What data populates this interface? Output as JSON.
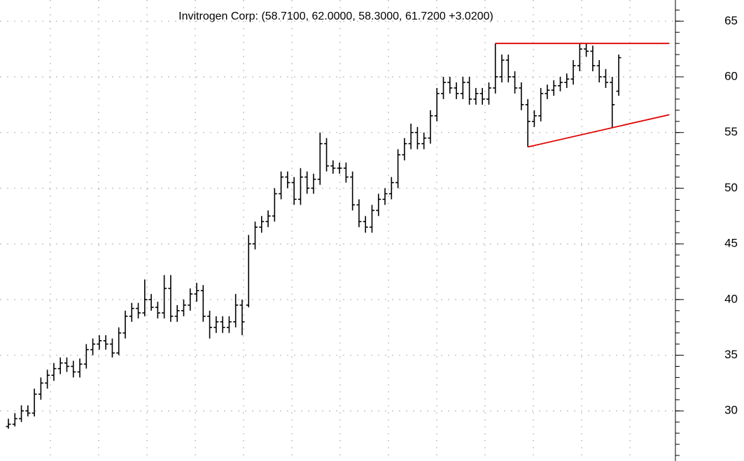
{
  "chart_data": {
    "type": "ohlc",
    "title": "Invitrogen Corp: (58.7100, 62.0000, 58.3000, 61.7200 +3.0200)",
    "color": "#000000",
    "open": [
      28.6,
      28.8,
      29.3,
      30.0,
      29.8,
      31.5,
      32.5,
      33.2,
      33.8,
      34.3,
      34.0,
      33.5,
      34.2,
      35.5,
      36.0,
      36.3,
      36.0,
      35.2,
      37.0,
      38.5,
      39.2,
      38.8,
      40.0,
      39.3,
      38.8,
      41.0,
      38.5,
      39.0,
      39.5,
      40.5,
      40.8,
      38.5,
      37.5,
      38.0,
      37.5,
      38.0,
      39.5,
      39.5,
      45.0,
      46.5,
      47.0,
      47.5,
      49.5,
      51.0,
      50.5,
      49.0,
      51.0,
      50.0,
      50.8,
      54.0,
      52.0,
      51.8,
      51.8,
      51.0,
      48.5,
      47.0,
      46.5,
      48.0,
      49.0,
      49.5,
      50.5,
      53.0,
      54.0,
      55.0,
      54.0,
      54.5,
      56.5,
      58.5,
      59.5,
      59.0,
      58.5,
      59.5,
      58.0,
      58.5,
      58.0,
      59.0,
      60.0,
      61.5,
      60.0,
      59.0,
      57.5,
      56.0,
      56.5,
      58.5,
      58.8,
      59.2,
      59.5,
      59.8,
      61.0,
      62.5,
      62.3,
      61.0,
      60.0,
      59.5,
      58.71
    ],
    "high": [
      29.3,
      29.8,
      30.5,
      30.5,
      32.0,
      33.0,
      33.7,
      34.3,
      34.8,
      34.8,
      34.5,
      34.7,
      36.0,
      36.5,
      36.8,
      36.8,
      36.5,
      37.5,
      39.0,
      39.7,
      39.7,
      41.8,
      40.5,
      39.8,
      42.2,
      42.2,
      39.5,
      40.0,
      41.0,
      41.5,
      41.3,
      39.0,
      38.5,
      38.5,
      38.5,
      40.5,
      40.0,
      45.8,
      47.0,
      47.5,
      48.0,
      50.0,
      51.5,
      51.5,
      51.0,
      51.8,
      51.5,
      51.3,
      55.0,
      54.5,
      52.5,
      52.3,
      52.3,
      51.5,
      49.0,
      47.5,
      48.5,
      49.5,
      50.0,
      51.0,
      53.5,
      54.5,
      55.8,
      55.5,
      55.0,
      57.0,
      59.0,
      60.0,
      60.0,
      59.5,
      60.0,
      60.0,
      59.0,
      59.0,
      59.5,
      63.0,
      62.0,
      62.0,
      60.5,
      59.5,
      58.0,
      57.0,
      59.0,
      59.3,
      59.7,
      60.0,
      60.3,
      61.5,
      63.0,
      63.0,
      62.8,
      61.5,
      60.7,
      60.0,
      62.0
    ],
    "low": [
      28.4,
      28.6,
      29.0,
      29.5,
      29.5,
      31.0,
      32.0,
      32.7,
      33.3,
      33.5,
      33.0,
      33.0,
      33.8,
      35.0,
      35.5,
      35.5,
      34.8,
      35.0,
      36.5,
      38.0,
      38.3,
      38.5,
      39.0,
      38.3,
      38.3,
      38.0,
      38.0,
      38.5,
      39.0,
      39.8,
      38.0,
      36.5,
      37.0,
      37.0,
      37.0,
      37.5,
      36.8,
      39.3,
      44.5,
      46.0,
      46.5,
      47.0,
      49.0,
      50.0,
      48.5,
      48.5,
      49.5,
      49.5,
      50.3,
      51.5,
      51.3,
      51.3,
      50.5,
      48.0,
      46.5,
      46.0,
      46.0,
      47.5,
      48.5,
      49.0,
      50.0,
      52.5,
      53.5,
      53.5,
      53.5,
      54.0,
      56.0,
      58.0,
      58.5,
      58.0,
      58.0,
      57.5,
      57.5,
      57.5,
      57.5,
      58.5,
      59.5,
      59.5,
      58.5,
      57.0,
      53.7,
      55.5,
      56.0,
      58.0,
      58.3,
      58.7,
      59.0,
      59.3,
      60.5,
      61.8,
      60.5,
      59.5,
      59.0,
      55.4,
      58.3
    ],
    "close": [
      28.8,
      29.3,
      30.0,
      29.8,
      31.5,
      32.5,
      33.2,
      33.8,
      34.3,
      34.0,
      33.5,
      34.2,
      35.5,
      36.0,
      36.3,
      36.0,
      35.2,
      37.0,
      38.5,
      39.2,
      38.8,
      40.0,
      39.3,
      38.8,
      41.0,
      38.5,
      39.0,
      39.5,
      40.5,
      40.8,
      38.5,
      37.5,
      38.0,
      37.5,
      38.0,
      39.5,
      38.0,
      45.0,
      46.5,
      47.0,
      47.5,
      49.5,
      51.0,
      50.5,
      49.0,
      51.0,
      50.0,
      50.8,
      54.0,
      52.0,
      51.8,
      51.8,
      51.0,
      48.5,
      47.0,
      46.5,
      48.0,
      49.0,
      49.5,
      50.5,
      53.0,
      54.0,
      55.0,
      54.0,
      54.5,
      56.5,
      58.5,
      59.5,
      59.0,
      58.5,
      59.5,
      58.0,
      58.5,
      58.0,
      59.0,
      60.0,
      61.5,
      60.0,
      59.0,
      57.5,
      56.0,
      56.5,
      58.5,
      58.8,
      59.2,
      59.5,
      59.8,
      61.0,
      62.5,
      62.3,
      61.0,
      60.0,
      59.5,
      57.5,
      61.72
    ],
    "trendlines": [
      {
        "color": "#e00000",
        "x": [
          75,
          101.8
        ],
        "y": [
          63.0,
          63.0
        ]
      },
      {
        "color": "#e00000",
        "x": [
          80,
          101.8
        ],
        "y": [
          53.7,
          56.6
        ]
      }
    ],
    "ylim": [
      25.5,
      66.9
    ],
    "yticks": [
      30,
      35,
      40,
      45,
      50,
      55,
      60,
      65
    ],
    "grid": true
  }
}
